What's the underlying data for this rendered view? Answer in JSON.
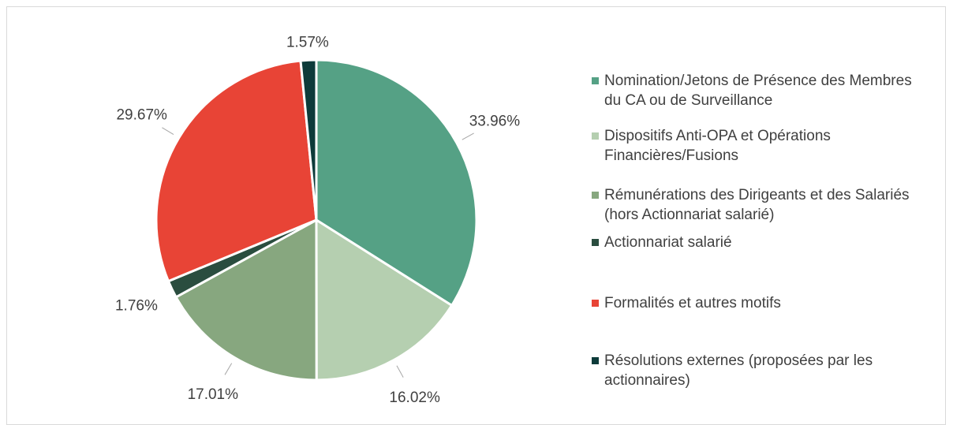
{
  "chart_data": {
    "type": "pie",
    "categories": [
      "Nomination/Jetons de Présence des Membres du CA ou de Surveillance",
      "Dispositifs Anti-OPA et Opérations Financières/Fusions",
      "Rémunérations des Dirigeants et des Salariés (hors Actionnariat salarié)",
      "Actionnariat salarié",
      "Formalités et autres motifs",
      "Résolutions externes (proposées par les actionnaires)"
    ],
    "values": [
      33.96,
      16.02,
      17.01,
      1.76,
      29.67,
      1.57
    ],
    "value_labels": [
      "33.96%",
      "16.02%",
      "17.01%",
      "1.76%",
      "29.67%",
      "1.57%"
    ],
    "colors": [
      "#55a185",
      "#b5cfb0",
      "#87a77f",
      "#2a4d3f",
      "#e84436",
      "#0d3b3a"
    ],
    "legend": "right"
  }
}
